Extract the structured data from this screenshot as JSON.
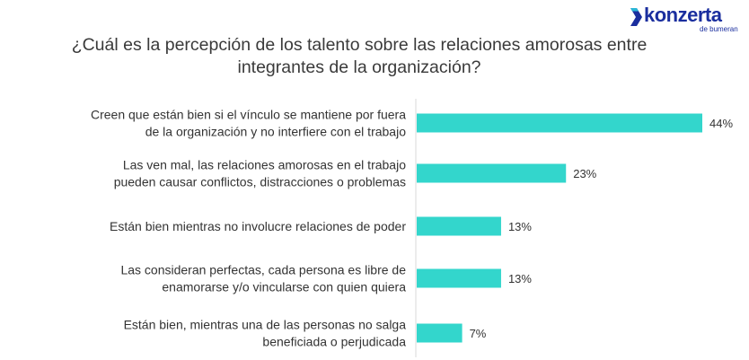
{
  "brand": {
    "name": "konzerta",
    "sub": "de bumeran",
    "color": "#1a2e9e",
    "accent": "#29b6d6"
  },
  "chart_data": {
    "type": "bar",
    "orientation": "horizontal",
    "title": "¿Cuál es la percepción de los talento sobre las relaciones amorosas entre integrantes de la organización?",
    "categories": [
      [
        "Creen que están bien si el vínculo se mantiene por fuera",
        "de la organización y no interfiere con el trabajo"
      ],
      [
        "Las ven mal, las relaciones amorosas en el trabajo",
        "pueden causar conflictos, distracciones o problemas"
      ],
      [
        "Están bien mientras no involucre relaciones de poder"
      ],
      [
        "Las consideran perfectas, cada persona es libre de",
        "enamorarse y/o vincularse con quien quiera"
      ],
      [
        "Están bien, mientras una de las personas no salga",
        "beneficiada o perjudicada"
      ]
    ],
    "values": [
      44,
      23,
      13,
      13,
      7
    ],
    "value_labels": [
      "44%",
      "23%",
      "13%",
      "13%",
      "7%"
    ],
    "unit": "%",
    "bar_color": "#33d6cc",
    "axis_color": "#d9d9d9",
    "grid": false,
    "legend": "none"
  }
}
